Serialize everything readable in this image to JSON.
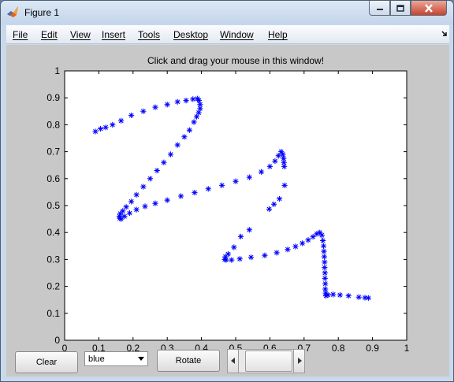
{
  "window": {
    "title": "Figure 1",
    "controls": [
      "minimize-icon",
      "maximize-icon",
      "close-icon"
    ]
  },
  "menu": {
    "items": [
      "File",
      "Edit",
      "View",
      "Insert",
      "Tools",
      "Desktop",
      "Window",
      "Help"
    ]
  },
  "controls": {
    "clear_label": "Clear",
    "color_select_value": "blue",
    "rotate_label": "Rotate"
  },
  "colors": {
    "marker": "#0000ff",
    "figure_background": "#c8c8c8",
    "axes_background": "#ffffff"
  },
  "chart_data": {
    "type": "scatter",
    "title": "Click and drag your mouse in this window!",
    "xlabel": "",
    "ylabel": "",
    "xlim": [
      0,
      1
    ],
    "ylim": [
      0,
      1
    ],
    "grid": false,
    "marker": "*",
    "x_ticks": [
      "0",
      "0.1",
      "0.2",
      "0.3",
      "0.4",
      "0.5",
      "0.6",
      "0.7",
      "0.8",
      "0.9",
      "1"
    ],
    "y_ticks": [
      "0",
      "0.1",
      "0.2",
      "0.3",
      "0.4",
      "0.5",
      "0.6",
      "0.7",
      "0.8",
      "0.9",
      "1"
    ],
    "series": [
      {
        "x": [
          0.09,
          0.105,
          0.12,
          0.14,
          0.165,
          0.195,
          0.23,
          0.265,
          0.3,
          0.33,
          0.355,
          0.375,
          0.388,
          0.393,
          0.396,
          0.396,
          0.392,
          0.386,
          0.378,
          0.365,
          0.35,
          0.33,
          0.31,
          0.29,
          0.27,
          0.25,
          0.23,
          0.21,
          0.195,
          0.18,
          0.17,
          0.163,
          0.16,
          0.161,
          0.165,
          0.175,
          0.19,
          0.21,
          0.235,
          0.265,
          0.3,
          0.34,
          0.38,
          0.42,
          0.46,
          0.5,
          0.54,
          0.575,
          0.6,
          0.615,
          0.625,
          0.633,
          0.638,
          0.64,
          0.641,
          0.642,
          0.643,
          0.628,
          0.612,
          0.598,
          0.54,
          0.515,
          0.495,
          0.478,
          0.47,
          0.468,
          0.472,
          0.488,
          0.512,
          0.545,
          0.585,
          0.62,
          0.652,
          0.675,
          0.695,
          0.712,
          0.726,
          0.737,
          0.746,
          0.752,
          0.755,
          0.757,
          0.758,
          0.759,
          0.76,
          0.76,
          0.761,
          0.761,
          0.762,
          0.762,
          0.763,
          0.764,
          0.77,
          0.785,
          0.805,
          0.83,
          0.86,
          0.878,
          0.888
        ],
        "y": [
          0.775,
          0.785,
          0.79,
          0.8,
          0.815,
          0.835,
          0.85,
          0.865,
          0.875,
          0.885,
          0.89,
          0.895,
          0.897,
          0.89,
          0.875,
          0.86,
          0.845,
          0.83,
          0.81,
          0.78,
          0.755,
          0.725,
          0.69,
          0.66,
          0.63,
          0.6,
          0.57,
          0.54,
          0.515,
          0.495,
          0.48,
          0.47,
          0.46,
          0.453,
          0.45,
          0.46,
          0.472,
          0.485,
          0.497,
          0.508,
          0.52,
          0.535,
          0.548,
          0.562,
          0.575,
          0.59,
          0.605,
          0.625,
          0.645,
          0.665,
          0.685,
          0.7,
          0.69,
          0.675,
          0.66,
          0.645,
          0.575,
          0.525,
          0.505,
          0.487,
          0.41,
          0.385,
          0.345,
          0.32,
          0.31,
          0.3,
          0.298,
          0.298,
          0.302,
          0.308,
          0.315,
          0.325,
          0.337,
          0.348,
          0.36,
          0.372,
          0.384,
          0.395,
          0.4,
          0.39,
          0.37,
          0.35,
          0.33,
          0.31,
          0.29,
          0.27,
          0.25,
          0.23,
          0.21,
          0.19,
          0.175,
          0.165,
          0.168,
          0.17,
          0.168,
          0.165,
          0.16,
          0.158,
          0.157
        ]
      }
    ]
  }
}
